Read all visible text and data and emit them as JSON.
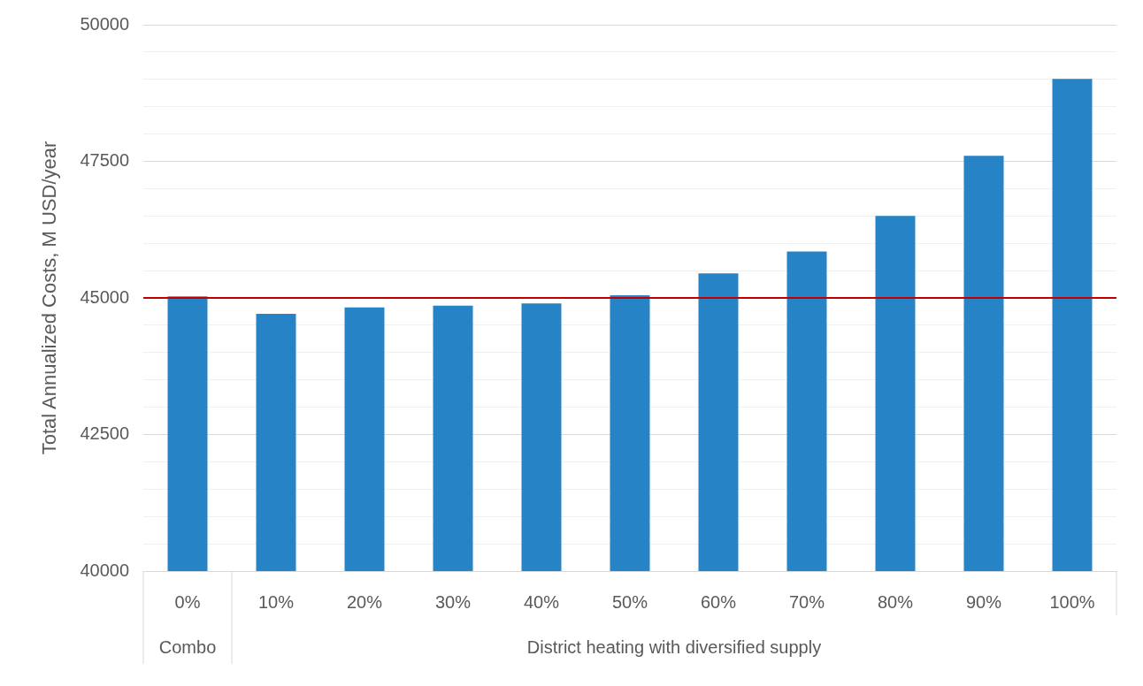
{
  "chart_data": {
    "type": "bar",
    "ylabel": "Total Annualized Costs, M USD/year",
    "categories": [
      "0%",
      "10%",
      "20%",
      "30%",
      "40%",
      "50%",
      "60%",
      "70%",
      "80%",
      "90%",
      "100%"
    ],
    "values": [
      45030,
      44710,
      44825,
      44860,
      44900,
      45050,
      45450,
      45850,
      46500,
      47600,
      49010
    ],
    "color": "#2683c6",
    "ylim": [
      40000,
      50000
    ],
    "yticks": [
      40000,
      {
        "value": 40500,
        "label": null
      },
      {
        "value": 41000,
        "label": null
      },
      {
        "value": 41500,
        "label": null
      },
      {
        "value": 42000,
        "label": null
      },
      42500,
      {
        "value": 43000,
        "label": null
      },
      {
        "value": 43500,
        "label": null
      },
      {
        "value": 44000,
        "label": null
      },
      {
        "value": 44500,
        "label": null
      },
      45000,
      {
        "value": 45500,
        "label": null
      },
      {
        "value": 46000,
        "label": null
      },
      {
        "value": 46500,
        "label": null
      },
      {
        "value": 47000,
        "label": null
      },
      47500,
      {
        "value": 48000,
        "label": null
      },
      {
        "value": 48500,
        "label": null
      },
      {
        "value": 49000,
        "label": null
      },
      {
        "value": 49500,
        "label": null
      },
      50000
    ],
    "grid": "y",
    "ref_lines": [
      {
        "axis": "y",
        "value": 45000,
        "label": null,
        "color": "#c00000"
      }
    ],
    "annotations": [
      "Combo",
      "District heating with diversified supply"
    ]
  }
}
